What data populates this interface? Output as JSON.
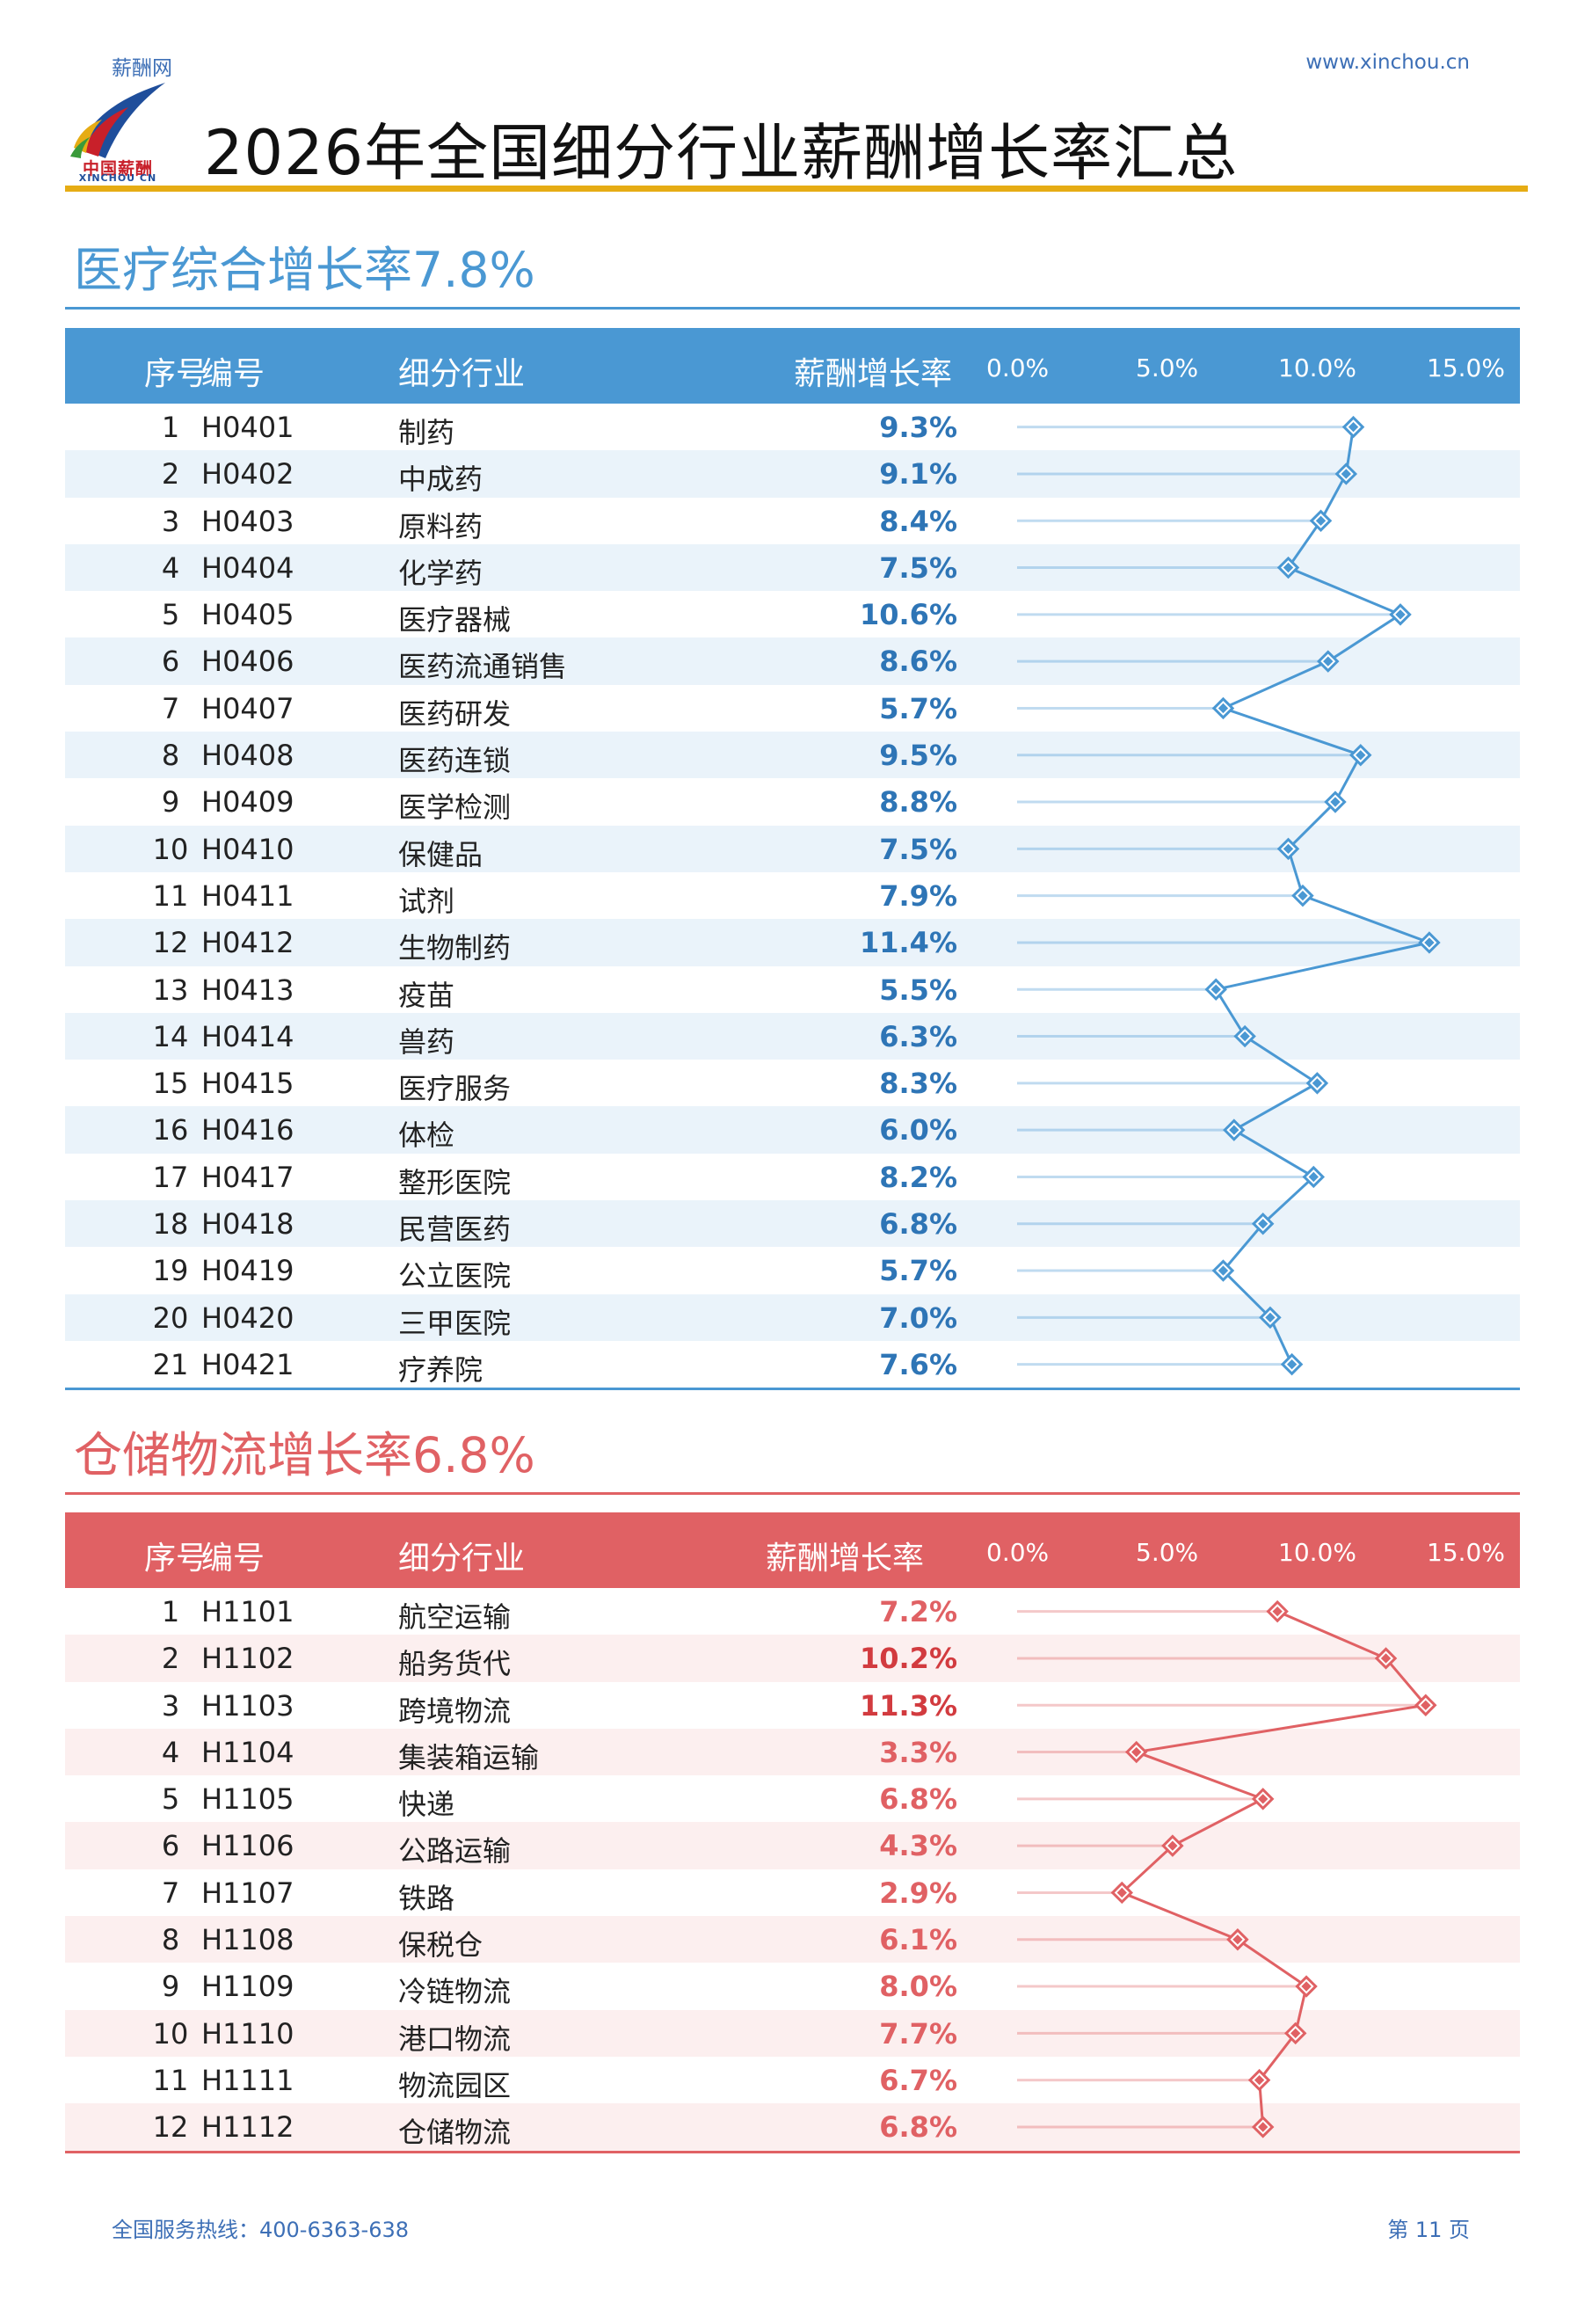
{
  "header": {
    "site_name": "薪酬网",
    "site_url": "www.xinchou.cn",
    "logo_text_cn": "中国薪酬",
    "logo_text_en": "XINCHOU CN",
    "title": "2026年全国细分行业薪酬增长率汇总"
  },
  "columns": {
    "idx": "序号",
    "code": "编号",
    "industry": "细分行业",
    "rate": "薪酬增长率"
  },
  "sections": [
    {
      "title": "医疗综合增长率7.8%",
      "color": "#4a98d3",
      "stripe": "#eaf3fa",
      "rate_color": "#2e75b6",
      "highlight_color": "#2e75b6",
      "rows": [
        {
          "idx": "1",
          "code": "H0401",
          "industry": "制药",
          "rate": "9.3%"
        },
        {
          "idx": "2",
          "code": "H0402",
          "industry": "中成药",
          "rate": "9.1%"
        },
        {
          "idx": "3",
          "code": "H0403",
          "industry": "原料药",
          "rate": "8.4%"
        },
        {
          "idx": "4",
          "code": "H0404",
          "industry": "化学药",
          "rate": "7.5%"
        },
        {
          "idx": "5",
          "code": "H0405",
          "industry": "医疗器械",
          "rate": "10.6%"
        },
        {
          "idx": "6",
          "code": "H0406",
          "industry": "医药流通销售",
          "rate": "8.6%"
        },
        {
          "idx": "7",
          "code": "H0407",
          "industry": "医药研发",
          "rate": "5.7%"
        },
        {
          "idx": "8",
          "code": "H0408",
          "industry": "医药连锁",
          "rate": "9.5%"
        },
        {
          "idx": "9",
          "code": "H0409",
          "industry": "医学检测",
          "rate": "8.8%"
        },
        {
          "idx": "10",
          "code": "H0410",
          "industry": "保健品",
          "rate": "7.5%"
        },
        {
          "idx": "11",
          "code": "H0411",
          "industry": "试剂",
          "rate": "7.9%"
        },
        {
          "idx": "12",
          "code": "H0412",
          "industry": "生物制药",
          "rate": "11.4%"
        },
        {
          "idx": "13",
          "code": "H0413",
          "industry": "疫苗",
          "rate": "5.5%"
        },
        {
          "idx": "14",
          "code": "H0414",
          "industry": "兽药",
          "rate": "6.3%"
        },
        {
          "idx": "15",
          "code": "H0415",
          "industry": "医疗服务",
          "rate": "8.3%"
        },
        {
          "idx": "16",
          "code": "H0416",
          "industry": "体检",
          "rate": "6.0%"
        },
        {
          "idx": "17",
          "code": "H0417",
          "industry": "整形医院",
          "rate": "8.2%"
        },
        {
          "idx": "18",
          "code": "H0418",
          "industry": "民营医药",
          "rate": "6.8%"
        },
        {
          "idx": "19",
          "code": "H0419",
          "industry": "公立医院",
          "rate": "5.7%"
        },
        {
          "idx": "20",
          "code": "H0420",
          "industry": "三甲医院",
          "rate": "7.0%"
        },
        {
          "idx": "21",
          "code": "H0421",
          "industry": "疗养院",
          "rate": "7.6%"
        }
      ]
    },
    {
      "title": "仓储物流增长率6.8%",
      "color": "#e06164",
      "stripe": "#fcefef",
      "rate_color": "#e06164",
      "highlight_color": "#e06164",
      "rows": [
        {
          "idx": "1",
          "code": "H1101",
          "industry": "航空运输",
          "rate": "7.2%"
        },
        {
          "idx": "2",
          "code": "H1102",
          "industry": "船务货代",
          "rate": "10.2%"
        },
        {
          "idx": "3",
          "code": "H1103",
          "industry": "跨境物流",
          "rate": "11.3%"
        },
        {
          "idx": "4",
          "code": "H1104",
          "industry": "集装箱运输",
          "rate": "3.3%"
        },
        {
          "idx": "5",
          "code": "H1105",
          "industry": "快递",
          "rate": "6.8%"
        },
        {
          "idx": "6",
          "code": "H1106",
          "industry": "公路运输",
          "rate": "4.3%"
        },
        {
          "idx": "7",
          "code": "H1107",
          "industry": "铁路",
          "rate": "2.9%"
        },
        {
          "idx": "8",
          "code": "H1108",
          "industry": "保税仓",
          "rate": "6.1%"
        },
        {
          "idx": "9",
          "code": "H1109",
          "industry": "冷链物流",
          "rate": "8.0%"
        },
        {
          "idx": "10",
          "code": "H1110",
          "industry": "港口物流",
          "rate": "7.7%"
        },
        {
          "idx": "11",
          "code": "H1111",
          "industry": "物流园区",
          "rate": "6.7%"
        },
        {
          "idx": "12",
          "code": "H1112",
          "industry": "仓储物流",
          "rate": "6.8%"
        }
      ]
    }
  ],
  "chart_data": [
    {
      "type": "line",
      "axis_ticks": [
        "0.0%",
        "5.0%",
        "10.0%",
        "15.0%"
      ],
      "xlim": [
        0,
        15
      ],
      "categories": [
        "制药",
        "中成药",
        "原料药",
        "化学药",
        "医疗器械",
        "医药流通销售",
        "医药研发",
        "医药连锁",
        "医学检测",
        "保健品",
        "试剂",
        "生物制药",
        "疫苗",
        "兽药",
        "医疗服务",
        "体检",
        "整形医院",
        "民营医药",
        "公立医院",
        "三甲医院",
        "疗养院"
      ],
      "values": [
        9.3,
        9.1,
        8.4,
        7.5,
        10.6,
        8.6,
        5.7,
        9.5,
        8.8,
        7.5,
        7.9,
        11.4,
        5.5,
        6.3,
        8.3,
        6.0,
        8.2,
        6.8,
        5.7,
        7.0,
        7.6
      ]
    },
    {
      "type": "line",
      "axis_ticks": [
        "0.0%",
        "5.0%",
        "10.0%",
        "15.0%"
      ],
      "xlim": [
        0,
        15
      ],
      "categories": [
        "航空运输",
        "船务货代",
        "跨境物流",
        "集装箱运输",
        "快递",
        "公路运输",
        "铁路",
        "保税仓",
        "冷链物流",
        "港口物流",
        "物流园区",
        "仓储物流"
      ],
      "values": [
        7.2,
        10.2,
        11.3,
        3.3,
        6.8,
        4.3,
        2.9,
        6.1,
        8.0,
        7.7,
        6.7,
        6.8
      ]
    }
  ],
  "footer": {
    "hotline": "全国服务热线：400-6363-638",
    "page": "第 11 页"
  }
}
